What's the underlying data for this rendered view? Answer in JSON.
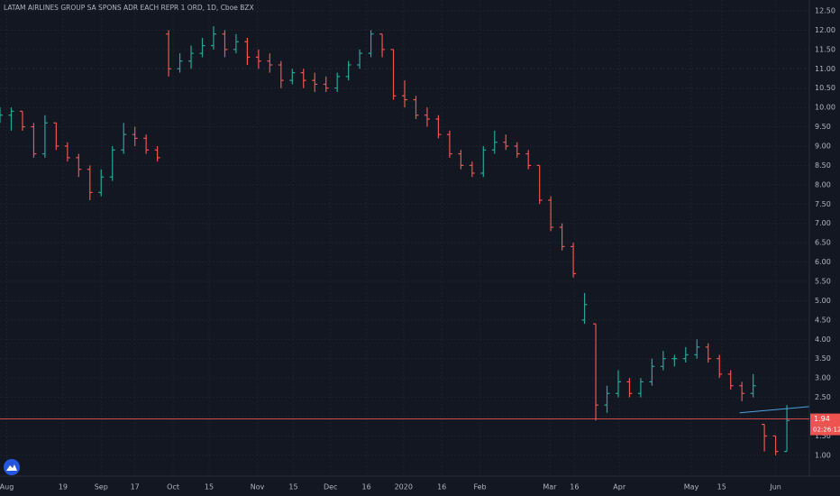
{
  "chart_data": {
    "type": "ohlc",
    "title": "LATAM AIRLINES GROUP SA SPONS ADR EACH REPR 1 ORD, 1D, Cboe BZX",
    "up_color": "#26a69a",
    "down_color": "#ef5350",
    "bars": [
      [
        9.7,
        10.0,
        9.6,
        9.8
      ],
      [
        9.8,
        10.0,
        9.4,
        9.9
      ],
      [
        9.9,
        9.9,
        9.4,
        9.5
      ],
      [
        9.5,
        9.6,
        8.7,
        8.8
      ],
      [
        8.8,
        9.8,
        8.7,
        9.6
      ],
      [
        9.6,
        9.6,
        8.9,
        9.0
      ],
      [
        9.0,
        9.1,
        8.6,
        8.7
      ],
      [
        8.7,
        8.8,
        8.2,
        8.4
      ],
      [
        8.4,
        8.5,
        7.6,
        7.8
      ],
      [
        7.8,
        8.4,
        7.7,
        8.2
      ],
      [
        8.2,
        9.0,
        8.1,
        8.9
      ],
      [
        8.9,
        9.6,
        8.8,
        9.3
      ],
      [
        9.3,
        9.5,
        9.0,
        9.2
      ],
      [
        9.2,
        9.3,
        8.8,
        8.9
      ],
      [
        8.9,
        9.0,
        8.6,
        8.7
      ],
      [
        11.9,
        12.0,
        10.8,
        11.0
      ],
      [
        11.0,
        11.4,
        10.9,
        11.2
      ],
      [
        11.2,
        11.6,
        11.0,
        11.4
      ],
      [
        11.4,
        11.8,
        11.3,
        11.6
      ],
      [
        11.6,
        12.1,
        11.5,
        11.9
      ],
      [
        11.9,
        12.0,
        11.3,
        11.5
      ],
      [
        11.5,
        11.9,
        11.4,
        11.7
      ],
      [
        11.7,
        11.8,
        11.1,
        11.3
      ],
      [
        11.3,
        11.5,
        11.0,
        11.2
      ],
      [
        11.2,
        11.4,
        10.9,
        11.1
      ],
      [
        11.1,
        11.2,
        10.5,
        10.7
      ],
      [
        10.7,
        11.0,
        10.6,
        10.9
      ],
      [
        10.9,
        11.0,
        10.5,
        10.7
      ],
      [
        10.7,
        10.9,
        10.4,
        10.6
      ],
      [
        10.6,
        10.8,
        10.4,
        10.5
      ],
      [
        10.5,
        10.9,
        10.4,
        10.8
      ],
      [
        10.8,
        11.2,
        10.7,
        11.1
      ],
      [
        11.1,
        11.5,
        11.0,
        11.4
      ],
      [
        11.4,
        12.0,
        11.3,
        11.9
      ],
      [
        11.9,
        11.9,
        11.3,
        11.5
      ],
      [
        11.5,
        11.5,
        10.2,
        10.3
      ],
      [
        10.3,
        10.7,
        10.0,
        10.2
      ],
      [
        10.2,
        10.3,
        9.7,
        9.8
      ],
      [
        9.8,
        10.0,
        9.5,
        9.7
      ],
      [
        9.7,
        9.8,
        9.2,
        9.3
      ],
      [
        9.3,
        9.4,
        8.7,
        8.8
      ],
      [
        8.8,
        8.9,
        8.4,
        8.5
      ],
      [
        8.5,
        8.6,
        8.2,
        8.3
      ],
      [
        8.3,
        9.0,
        8.2,
        8.9
      ],
      [
        8.9,
        9.4,
        8.8,
        9.1
      ],
      [
        9.1,
        9.3,
        8.9,
        9.0
      ],
      [
        9.0,
        9.1,
        8.7,
        8.8
      ],
      [
        8.8,
        8.9,
        8.4,
        8.5
      ],
      [
        8.5,
        8.5,
        7.5,
        7.6
      ],
      [
        7.6,
        7.7,
        6.8,
        6.9
      ],
      [
        6.9,
        7.0,
        6.3,
        6.4
      ],
      [
        6.4,
        6.5,
        5.6,
        5.7
      ],
      [
        4.5,
        5.2,
        4.4,
        4.9
      ],
      [
        4.4,
        4.4,
        1.9,
        2.3
      ],
      [
        2.3,
        2.8,
        2.1,
        2.6
      ],
      [
        2.6,
        3.2,
        2.5,
        2.9
      ],
      [
        2.9,
        3.0,
        2.5,
        2.6
      ],
      [
        2.6,
        3.0,
        2.5,
        2.9
      ],
      [
        2.9,
        3.5,
        2.8,
        3.3
      ],
      [
        3.3,
        3.7,
        3.2,
        3.5
      ],
      [
        3.5,
        3.6,
        3.3,
        3.5
      ],
      [
        3.5,
        3.8,
        3.4,
        3.6
      ],
      [
        3.6,
        4.0,
        3.5,
        3.8
      ],
      [
        3.8,
        3.9,
        3.4,
        3.5
      ],
      [
        3.5,
        3.6,
        3.0,
        3.1
      ],
      [
        3.1,
        3.2,
        2.7,
        2.8
      ],
      [
        2.8,
        2.9,
        2.4,
        2.6
      ],
      [
        2.6,
        3.1,
        2.5,
        2.8
      ],
      [
        1.8,
        1.8,
        1.1,
        1.5
      ],
      [
        1.5,
        1.5,
        1.0,
        1.1
      ],
      [
        1.1,
        2.3,
        1.1,
        1.9
      ]
    ],
    "xlim": [
      0,
      72
    ],
    "xticks": [
      {
        "value": 0.6,
        "label": "Aug"
      },
      {
        "value": 5.6,
        "label": "19"
      },
      {
        "value": 9.0,
        "label": "Sep"
      },
      {
        "value": 12.0,
        "label": "17"
      },
      {
        "value": 15.4,
        "label": "Oct"
      },
      {
        "value": 18.6,
        "label": "15"
      },
      {
        "value": 22.9,
        "label": "Nov"
      },
      {
        "value": 26.1,
        "label": "15"
      },
      {
        "value": 29.4,
        "label": "Dec"
      },
      {
        "value": 32.6,
        "label": "16"
      },
      {
        "value": 35.9,
        "label": "2020"
      },
      {
        "value": 39.3,
        "label": "16"
      },
      {
        "value": 42.7,
        "label": "Feb"
      },
      {
        "value": 48.9,
        "label": "Mar"
      },
      {
        "value": 51.1,
        "label": "16"
      },
      {
        "value": 55.1,
        "label": "Apr"
      },
      {
        "value": 61.5,
        "label": "May"
      },
      {
        "value": 64.2,
        "label": "15"
      },
      {
        "value": 69.0,
        "label": "Jun"
      }
    ],
    "ylim": [
      0.46,
      12.78
    ],
    "yticks": [
      {
        "value": 1,
        "label": "1.00"
      },
      {
        "value": 1.5,
        "label": "1.50"
      },
      {
        "value": 2,
        "label": "2.00"
      },
      {
        "value": 2.5,
        "label": "2.50"
      },
      {
        "value": 3,
        "label": "3.00"
      },
      {
        "value": 3.5,
        "label": "3.50"
      },
      {
        "value": 4,
        "label": "4.00"
      },
      {
        "value": 4.5,
        "label": "4.50"
      },
      {
        "value": 5,
        "label": "5.00"
      },
      {
        "value": 5.5,
        "label": "5.50"
      },
      {
        "value": 6,
        "label": "6.00"
      },
      {
        "value": 6.5,
        "label": "6.50"
      },
      {
        "value": 7,
        "label": "7.00"
      },
      {
        "value": 7.5,
        "label": "7.50"
      },
      {
        "value": 8,
        "label": "8.00"
      },
      {
        "value": 8.5,
        "label": "8.50"
      },
      {
        "value": 9,
        "label": "9.00"
      },
      {
        "value": 9.5,
        "label": "9.50"
      },
      {
        "value": 10,
        "label": "10.00"
      },
      {
        "value": 10.5,
        "label": "10.50"
      },
      {
        "value": 11,
        "label": "11.00"
      },
      {
        "value": 11.5,
        "label": "11.50"
      },
      {
        "value": 12,
        "label": "12.00"
      },
      {
        "value": 12.5,
        "label": "12.50"
      }
    ],
    "grid": true,
    "last_price": 1.94,
    "countdown": "02:26:12",
    "price_line_color": "#ef5350",
    "trendline": {
      "x": [
        65.8,
        72
      ],
      "y": [
        2.1,
        2.26
      ],
      "color": "#4fa3e0"
    }
  }
}
